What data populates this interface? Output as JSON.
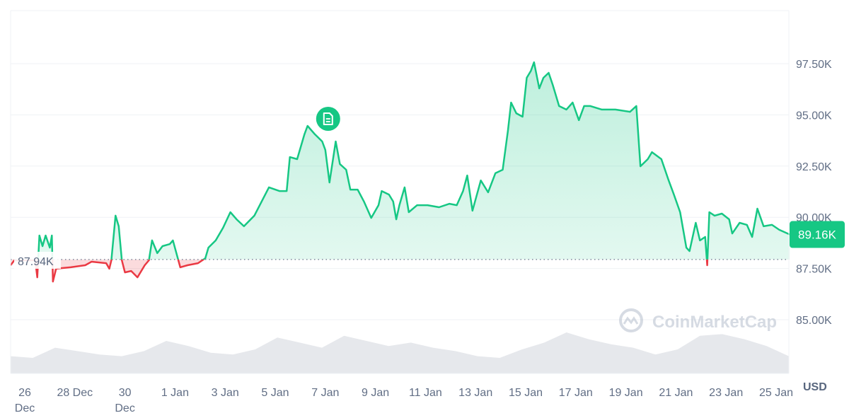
{
  "chart_data": {
    "type": "line",
    "currency_label": "USD",
    "y_ticks": [
      "97.50K",
      "95.00K",
      "92.50K",
      "90.00K",
      "87.50K",
      "85.00K"
    ],
    "y_tick_values": [
      97.5,
      95,
      92.5,
      90,
      87.5,
      85
    ],
    "ylim": [
      82.6,
      98.5
    ],
    "x_ticks": [
      {
        "l1": "26",
        "l2": "Dec"
      },
      {
        "l1": "28 Dec",
        "l2": ""
      },
      {
        "l1": "30",
        "l2": "Dec"
      },
      {
        "l1": "1 Jan",
        "l2": ""
      },
      {
        "l1": "3 Jan",
        "l2": ""
      },
      {
        "l1": "5 Jan",
        "l2": ""
      },
      {
        "l1": "7 Jan",
        "l2": ""
      },
      {
        "l1": "9 Jan",
        "l2": ""
      },
      {
        "l1": "11 Jan",
        "l2": ""
      },
      {
        "l1": "13 Jan",
        "l2": ""
      },
      {
        "l1": "15 Jan",
        "l2": ""
      },
      {
        "l1": "17 Jan",
        "l2": ""
      },
      {
        "l1": "19 Jan",
        "l2": ""
      },
      {
        "l1": "21 Jan",
        "l2": ""
      },
      {
        "l1": "23 Jan",
        "l2": ""
      },
      {
        "l1": "25 Jan",
        "l2": ""
      }
    ],
    "x_tick_dates": [
      "26 Dec 00:00",
      "28 Dec 00:00",
      "30 Dec 00:00",
      "1 Jan 00:00",
      "3 Jan 00:00",
      "5 Jan 00:00",
      "7 Jan 00:00",
      "9 Jan 00:00",
      "11 Jan 00:00",
      "13 Jan 00:00",
      "15 Jan 00:00",
      "17 Jan 00:00",
      "19 Jan 00:00",
      "21 Jan 00:00",
      "23 Jan 00:00",
      "25 Jan 00:00"
    ],
    "baseline": {
      "value": 87.94,
      "label": "87.94K"
    },
    "current": {
      "value": 89.16,
      "label": "89.16K"
    },
    "unit": "K USD",
    "colors": {
      "up": "#16c784",
      "down": "#ea3943",
      "badge": "#16c784",
      "grid": "#eff2f5",
      "volume": "#e6e8ec"
    },
    "watermark": "CoinMarketCap",
    "news_marker": {
      "date": "7 Jan 00:00",
      "icon": "document-icon"
    },
    "series": [
      [
        "25 Dec 10:00",
        87.66
      ],
      [
        "25 Dec 14:00",
        87.9
      ],
      [
        "26 Dec 10:00",
        87.9
      ],
      [
        "26 Dec 12:00",
        87.07
      ],
      [
        "26 Dec 14:00",
        89.11
      ],
      [
        "26 Dec 17:00",
        88.59
      ],
      [
        "26 Dec 20:00",
        89.11
      ],
      [
        "27 Dec 00:00",
        88.52
      ],
      [
        "27 Dec 02:00",
        89.11
      ],
      [
        "27 Dec 03:00",
        86.86
      ],
      [
        "27 Dec 06:00",
        87.49
      ],
      [
        "27 Dec 20:00",
        87.56
      ],
      [
        "28 Dec 10:00",
        87.66
      ],
      [
        "28 Dec 16:00",
        87.83
      ],
      [
        "29 Dec 06:00",
        87.76
      ],
      [
        "29 Dec 09:00",
        87.49
      ],
      [
        "29 Dec 11:00",
        87.9
      ],
      [
        "29 Dec 15:00",
        90.08
      ],
      [
        "29 Dec 18:00",
        89.56
      ],
      [
        "29 Dec 21:00",
        87.9
      ],
      [
        "30 Dec 00:00",
        87.31
      ],
      [
        "30 Dec 06:00",
        87.38
      ],
      [
        "30 Dec 12:00",
        87.07
      ],
      [
        "30 Dec 19:00",
        87.66
      ],
      [
        "30 Dec 23:00",
        87.9
      ],
      [
        "31 Dec 02:00",
        88.87
      ],
      [
        "31 Dec 07:00",
        88.25
      ],
      [
        "31 Dec 12:00",
        88.59
      ],
      [
        "31 Dec 19:00",
        88.69
      ],
      [
        "31 Dec 22:00",
        88.87
      ],
      [
        "1 Jan 05:00",
        87.56
      ],
      [
        "1 Jan 12:00",
        87.66
      ],
      [
        "1 Jan 22:00",
        87.76
      ],
      [
        "2 Jan 05:00",
        88.0
      ],
      [
        "2 Jan 08:00",
        88.52
      ],
      [
        "2 Jan 15:00",
        88.87
      ],
      [
        "2 Jan 22:00",
        89.49
      ],
      [
        "3 Jan 05:00",
        90.25
      ],
      [
        "3 Jan 11:00",
        89.9
      ],
      [
        "3 Jan 18:00",
        89.56
      ],
      [
        "4 Jan 04:00",
        90.08
      ],
      [
        "4 Jan 11:00",
        90.77
      ],
      [
        "4 Jan 18:00",
        91.46
      ],
      [
        "5 Jan 04:00",
        91.28
      ],
      [
        "5 Jan 11:00",
        91.28
      ],
      [
        "5 Jan 14:00",
        92.94
      ],
      [
        "5 Jan 21:00",
        92.84
      ],
      [
        "6 Jan 04:00",
        94.05
      ],
      [
        "6 Jan 07:00",
        94.46
      ],
      [
        "6 Jan 14:00",
        94.05
      ],
      [
        "6 Jan 21:00",
        93.7
      ],
      [
        "7 Jan 00:00",
        93.29
      ],
      [
        "7 Jan 04:00",
        91.7
      ],
      [
        "7 Jan 10:00",
        93.7
      ],
      [
        "7 Jan 14:00",
        92.6
      ],
      [
        "7 Jan 20:00",
        92.32
      ],
      [
        "8 Jan 00:00",
        91.35
      ],
      [
        "8 Jan 07:00",
        91.35
      ],
      [
        "8 Jan 13:00",
        90.77
      ],
      [
        "8 Jan 20:00",
        89.97
      ],
      [
        "9 Jan 03:00",
        90.59
      ],
      [
        "9 Jan 06:00",
        91.28
      ],
      [
        "9 Jan 13:00",
        91.11
      ],
      [
        "9 Jan 17:00",
        90.77
      ],
      [
        "9 Jan 20:00",
        89.9
      ],
      [
        "9 Jan 23:00",
        90.59
      ],
      [
        "10 Jan 04:00",
        91.46
      ],
      [
        "10 Jan 08:00",
        90.25
      ],
      [
        "10 Jan 16:00",
        90.59
      ],
      [
        "11 Jan 02:00",
        90.59
      ],
      [
        "11 Jan 13:00",
        90.49
      ],
      [
        "11 Jan 23:00",
        90.66
      ],
      [
        "12 Jan 06:00",
        90.59
      ],
      [
        "12 Jan 12:00",
        91.28
      ],
      [
        "12 Jan 16:00",
        92.04
      ],
      [
        "12 Jan 21:00",
        90.32
      ],
      [
        "13 Jan 05:00",
        91.8
      ],
      [
        "13 Jan 12:00",
        91.22
      ],
      [
        "13 Jan 19:00",
        92.15
      ],
      [
        "14 Jan 02:00",
        92.32
      ],
      [
        "14 Jan 07:00",
        94.22
      ],
      [
        "14 Jan 10:00",
        95.6
      ],
      [
        "14 Jan 15:00",
        95.08
      ],
      [
        "14 Jan 21:00",
        94.91
      ],
      [
        "15 Jan 01:00",
        96.81
      ],
      [
        "15 Jan 05:00",
        97.15
      ],
      [
        "15 Jan 08:00",
        97.57
      ],
      [
        "15 Jan 13:00",
        96.29
      ],
      [
        "15 Jan 17:00",
        96.81
      ],
      [
        "15 Jan 22:00",
        97.05
      ],
      [
        "16 Jan 02:00",
        96.46
      ],
      [
        "16 Jan 08:00",
        95.43
      ],
      [
        "16 Jan 15:00",
        95.26
      ],
      [
        "16 Jan 21:00",
        95.6
      ],
      [
        "17 Jan 03:00",
        94.74
      ],
      [
        "17 Jan 08:00",
        95.43
      ],
      [
        "17 Jan 14:00",
        95.43
      ],
      [
        "18 Jan 01:00",
        95.26
      ],
      [
        "18 Jan 14:00",
        95.26
      ],
      [
        "19 Jan 04:00",
        95.15
      ],
      [
        "19 Jan 10:00",
        95.43
      ],
      [
        "19 Jan 14:00",
        92.49
      ],
      [
        "19 Jan 21:00",
        92.84
      ],
      [
        "20 Jan 01:00",
        93.18
      ],
      [
        "20 Jan 10:00",
        92.84
      ],
      [
        "20 Jan 17:00",
        91.8
      ],
      [
        "20 Jan 22:00",
        91.11
      ],
      [
        "21 Jan 04:00",
        90.25
      ],
      [
        "21 Jan 10:00",
        88.52
      ],
      [
        "21 Jan 13:00",
        88.35
      ],
      [
        "21 Jan 19:00",
        89.73
      ],
      [
        "21 Jan 23:00",
        88.87
      ],
      [
        "22 Jan 04:00",
        89.04
      ],
      [
        "22 Jan 06:00",
        87.66
      ],
      [
        "22 Jan 08:00",
        90.25
      ],
      [
        "22 Jan 13:00",
        90.08
      ],
      [
        "22 Jan 20:00",
        90.18
      ],
      [
        "23 Jan 03:00",
        89.9
      ],
      [
        "23 Jan 06:00",
        89.21
      ],
      [
        "23 Jan 13:00",
        89.73
      ],
      [
        "23 Jan 20:00",
        89.63
      ],
      [
        "24 Jan 01:00",
        89.04
      ],
      [
        "24 Jan 06:00",
        90.42
      ],
      [
        "24 Jan 12:00",
        89.56
      ],
      [
        "24 Jan 20:00",
        89.63
      ],
      [
        "25 Jan 03:00",
        89.39
      ],
      [
        "25 Jan 13:00",
        89.16
      ]
    ],
    "volume_relative": [
      0.3,
      0.25,
      0.55,
      0.45,
      0.35,
      0.3,
      0.45,
      0.75,
      0.6,
      0.4,
      0.35,
      0.5,
      0.85,
      0.7,
      0.55,
      0.9,
      0.75,
      0.6,
      0.7,
      0.55,
      0.45,
      0.3,
      0.25,
      0.5,
      0.7,
      1.0,
      0.8,
      0.65,
      0.55,
      0.35,
      0.5,
      0.9,
      0.95,
      0.8,
      0.6,
      0.3
    ]
  }
}
